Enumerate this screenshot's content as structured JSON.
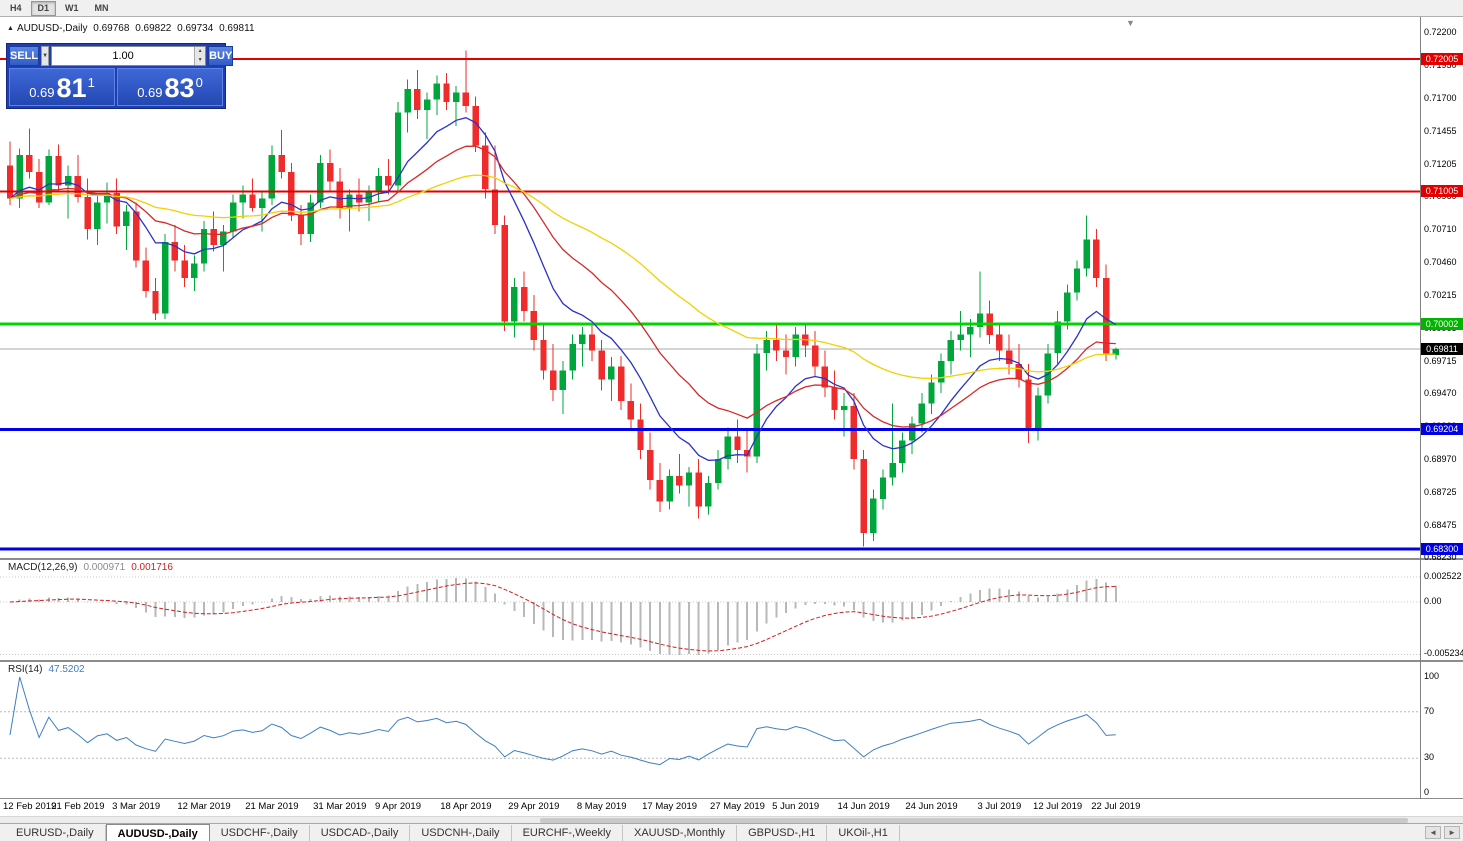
{
  "toolbar": {
    "timeframes": [
      "H4",
      "D1",
      "W1",
      "MN"
    ],
    "active": "D1"
  },
  "symbol_label": {
    "arrow": "▲",
    "name": "AUDUSD-,Daily",
    "open": "0.69768",
    "high": "0.69822",
    "low": "0.69734",
    "close": "0.69811"
  },
  "trade_panel": {
    "sell_label": "SELL",
    "buy_label": "BUY",
    "volume": "1.00",
    "sell_price": {
      "prefix": "0.69",
      "main": "81",
      "sup": "1"
    },
    "buy_price": {
      "prefix": "0.69",
      "main": "83",
      "sup": "0"
    }
  },
  "price_axis": {
    "ticks": [
      "0.72200",
      "0.71950",
      "0.71700",
      "0.71455",
      "0.71205",
      "0.70960",
      "0.70710",
      "0.70460",
      "0.70215",
      "0.69965",
      "0.69715",
      "0.69470",
      "0.69220",
      "0.68970",
      "0.68725",
      "0.68475",
      "0.68230"
    ],
    "badges": [
      {
        "text": "0.72005",
        "value": 0.72005,
        "color": "#e10000"
      },
      {
        "text": "0.71005",
        "value": 0.71005,
        "color": "#e10000"
      },
      {
        "text": "0.70002",
        "value": 0.70002,
        "color": "#00b400"
      },
      {
        "text": "0.69811",
        "value": 0.69811,
        "color": "#000000"
      },
      {
        "text": "0.69204",
        "value": 0.69204,
        "color": "#0000e0"
      },
      {
        "text": "0.68300",
        "value": 0.683,
        "color": "#0000e0"
      }
    ]
  },
  "indicators": {
    "macd": {
      "name": "MACD(12,26,9)",
      "value1": "0.000971",
      "value2": "0.001716",
      "fast": 12,
      "slow": 26,
      "signal": 9,
      "axis": [
        {
          "text": "0.002522",
          "value": 0.002522
        },
        {
          "text": "0.00",
          "value": 0
        },
        {
          "text": "-0.005234",
          "value": -0.005234
        }
      ]
    },
    "rsi": {
      "name": "RSI(14)",
      "value": "47.5202",
      "period": 14,
      "axis": [
        {
          "text": "100",
          "value": 100
        },
        {
          "text": "70",
          "value": 70
        },
        {
          "text": "30",
          "value": 30
        },
        {
          "text": "0",
          "value": 0
        }
      ],
      "levels": [
        70,
        30
      ]
    }
  },
  "chart_data": {
    "type": "candlestick",
    "symbol": "AUDUSD-",
    "timeframe": "Daily",
    "current_bid": 0.69811,
    "current_ask": 0.6983,
    "price_range": [
      0.6823,
      0.722
    ],
    "colors": {
      "bull": "#00a53c",
      "bear": "#ef2b2b",
      "ma_fast": "#2b32c8",
      "ma_mid": "#d42a2a",
      "ma_slow": "#f2d100",
      "macd_hist": "#b8b8b8",
      "macd_signal": "#cc2222",
      "rsi": "#3e7fc1",
      "bid_line": "#a8a8a8"
    },
    "moving_averages": [
      {
        "period": 10,
        "color_key": "ma_fast"
      },
      {
        "period": 21,
        "color_key": "ma_mid"
      },
      {
        "period": 50,
        "color_key": "ma_slow"
      }
    ],
    "hlines": [
      {
        "price": 0.72005,
        "color": "#e10000",
        "width": 2
      },
      {
        "price": 0.71005,
        "color": "#e10000",
        "width": 2
      },
      {
        "price": 0.70002,
        "color": "#00d500",
        "width": 3
      },
      {
        "price": 0.69204,
        "color": "#0000ea",
        "width": 3
      },
      {
        "price": 0.683,
        "color": "#0000ea",
        "width": 3
      }
    ],
    "x_labels": [
      {
        "i": 0,
        "text": "12 Feb 2019"
      },
      {
        "i": 7,
        "text": "21 Feb 2019"
      },
      {
        "i": 13,
        "text": "3 Mar 2019"
      },
      {
        "i": 20,
        "text": "12 Mar 2019"
      },
      {
        "i": 27,
        "text": "21 Mar 2019"
      },
      {
        "i": 34,
        "text": "31 Mar 2019"
      },
      {
        "i": 40,
        "text": "9 Apr 2019"
      },
      {
        "i": 47,
        "text": "18 Apr 2019"
      },
      {
        "i": 54,
        "text": "29 Apr 2019"
      },
      {
        "i": 61,
        "text": "8 May 2019"
      },
      {
        "i": 68,
        "text": "17 May 2019"
      },
      {
        "i": 75,
        "text": "27 May 2019"
      },
      {
        "i": 81,
        "text": "5 Jun 2019"
      },
      {
        "i": 88,
        "text": "14 Jun 2019"
      },
      {
        "i": 95,
        "text": "24 Jun 2019"
      },
      {
        "i": 102,
        "text": "3 Jul 2019"
      },
      {
        "i": 108,
        "text": "12 Jul 2019"
      },
      {
        "i": 114,
        "text": "22 Jul 2019"
      }
    ],
    "candles": [
      [
        0.712,
        0.7138,
        0.709,
        0.7095
      ],
      [
        0.7095,
        0.7133,
        0.7088,
        0.7128
      ],
      [
        0.7128,
        0.7148,
        0.711,
        0.7115
      ],
      [
        0.7115,
        0.7125,
        0.7088,
        0.7092
      ],
      [
        0.7092,
        0.7132,
        0.709,
        0.7127
      ],
      [
        0.7127,
        0.7136,
        0.71,
        0.7105
      ],
      [
        0.7105,
        0.712,
        0.708,
        0.7112
      ],
      [
        0.7112,
        0.7128,
        0.7092,
        0.7096
      ],
      [
        0.7096,
        0.711,
        0.7064,
        0.7072
      ],
      [
        0.7072,
        0.7098,
        0.706,
        0.7092
      ],
      [
        0.7092,
        0.7107,
        0.7076,
        0.7099
      ],
      [
        0.7099,
        0.711,
        0.7068,
        0.7074
      ],
      [
        0.7074,
        0.709,
        0.7056,
        0.7085
      ],
      [
        0.7085,
        0.7092,
        0.7043,
        0.7048
      ],
      [
        0.7048,
        0.7058,
        0.702,
        0.7025
      ],
      [
        0.7025,
        0.7035,
        0.7003,
        0.7008
      ],
      [
        0.7008,
        0.7068,
        0.7004,
        0.7062
      ],
      [
        0.7062,
        0.7075,
        0.704,
        0.7048
      ],
      [
        0.7048,
        0.706,
        0.7028,
        0.7035
      ],
      [
        0.7035,
        0.7052,
        0.7025,
        0.7046
      ],
      [
        0.7046,
        0.7078,
        0.704,
        0.7072
      ],
      [
        0.7072,
        0.7085,
        0.7055,
        0.706
      ],
      [
        0.706,
        0.7075,
        0.704,
        0.707
      ],
      [
        0.707,
        0.7098,
        0.7065,
        0.7092
      ],
      [
        0.7092,
        0.7105,
        0.708,
        0.7098
      ],
      [
        0.7098,
        0.711,
        0.7085,
        0.7088
      ],
      [
        0.7088,
        0.71,
        0.707,
        0.7095
      ],
      [
        0.7095,
        0.7135,
        0.709,
        0.7128
      ],
      [
        0.7128,
        0.7147,
        0.711,
        0.7115
      ],
      [
        0.7115,
        0.7122,
        0.7078,
        0.7082
      ],
      [
        0.7082,
        0.709,
        0.706,
        0.7068
      ],
      [
        0.7068,
        0.7098,
        0.7062,
        0.7092
      ],
      [
        0.7092,
        0.7128,
        0.7088,
        0.7122
      ],
      [
        0.7122,
        0.7132,
        0.71,
        0.7108
      ],
      [
        0.7108,
        0.7118,
        0.708,
        0.7088
      ],
      [
        0.7088,
        0.7102,
        0.707,
        0.7098
      ],
      [
        0.7098,
        0.711,
        0.7085,
        0.7092
      ],
      [
        0.7092,
        0.7105,
        0.7078,
        0.71
      ],
      [
        0.71,
        0.7118,
        0.7092,
        0.7112
      ],
      [
        0.7112,
        0.7125,
        0.7098,
        0.7105
      ],
      [
        0.7105,
        0.7168,
        0.71,
        0.716
      ],
      [
        0.716,
        0.7185,
        0.7145,
        0.7178
      ],
      [
        0.7178,
        0.7192,
        0.7155,
        0.7162
      ],
      [
        0.7162,
        0.7175,
        0.714,
        0.717
      ],
      [
        0.717,
        0.7188,
        0.7158,
        0.7182
      ],
      [
        0.7182,
        0.719,
        0.7162,
        0.7168
      ],
      [
        0.7168,
        0.718,
        0.715,
        0.7175
      ],
      [
        0.7175,
        0.7207,
        0.716,
        0.7165
      ],
      [
        0.7165,
        0.7172,
        0.713,
        0.7135
      ],
      [
        0.7135,
        0.7145,
        0.7095,
        0.7102
      ],
      [
        0.7102,
        0.7135,
        0.7068,
        0.7075
      ],
      [
        0.7075,
        0.7082,
        0.6995,
        0.7002
      ],
      [
        0.7002,
        0.7035,
        0.699,
        0.7028
      ],
      [
        0.7028,
        0.704,
        0.7002,
        0.701
      ],
      [
        0.701,
        0.7022,
        0.698,
        0.6988
      ],
      [
        0.6988,
        0.7,
        0.6958,
        0.6965
      ],
      [
        0.6965,
        0.6985,
        0.6942,
        0.695
      ],
      [
        0.695,
        0.6972,
        0.6932,
        0.6965
      ],
      [
        0.6965,
        0.6992,
        0.6958,
        0.6985
      ],
      [
        0.6985,
        0.6998,
        0.6968,
        0.6992
      ],
      [
        0.6992,
        0.7,
        0.6972,
        0.698
      ],
      [
        0.698,
        0.6988,
        0.695,
        0.6958
      ],
      [
        0.6958,
        0.6975,
        0.6942,
        0.6968
      ],
      [
        0.6968,
        0.6976,
        0.6935,
        0.6942
      ],
      [
        0.6942,
        0.6955,
        0.692,
        0.6928
      ],
      [
        0.6928,
        0.694,
        0.6898,
        0.6905
      ],
      [
        0.6905,
        0.6918,
        0.6875,
        0.6882
      ],
      [
        0.6882,
        0.6895,
        0.6858,
        0.6866
      ],
      [
        0.6866,
        0.689,
        0.686,
        0.6885
      ],
      [
        0.6885,
        0.6902,
        0.6872,
        0.6878
      ],
      [
        0.6878,
        0.6892,
        0.6862,
        0.6888
      ],
      [
        0.6888,
        0.6898,
        0.6853,
        0.6862
      ],
      [
        0.6862,
        0.6885,
        0.6856,
        0.688
      ],
      [
        0.688,
        0.6905,
        0.6875,
        0.6898
      ],
      [
        0.6898,
        0.6922,
        0.689,
        0.6915
      ],
      [
        0.6915,
        0.6928,
        0.6895,
        0.6905
      ],
      [
        0.6905,
        0.692,
        0.6888,
        0.69
      ],
      [
        0.69,
        0.6985,
        0.6895,
        0.6978
      ],
      [
        0.6978,
        0.6995,
        0.6965,
        0.6988
      ],
      [
        0.6988,
        0.7,
        0.6972,
        0.698
      ],
      [
        0.698,
        0.6992,
        0.6962,
        0.6975
      ],
      [
        0.6975,
        0.6998,
        0.6968,
        0.6992
      ],
      [
        0.6992,
        0.7001,
        0.6975,
        0.6984
      ],
      [
        0.6984,
        0.6995,
        0.696,
        0.6968
      ],
      [
        0.6968,
        0.698,
        0.6945,
        0.6952
      ],
      [
        0.6952,
        0.6965,
        0.6928,
        0.6935
      ],
      [
        0.6935,
        0.6948,
        0.6915,
        0.6938
      ],
      [
        0.6938,
        0.6948,
        0.689,
        0.6898
      ],
      [
        0.6898,
        0.6905,
        0.6832,
        0.6842
      ],
      [
        0.6842,
        0.6875,
        0.6836,
        0.6868
      ],
      [
        0.6868,
        0.689,
        0.686,
        0.6884
      ],
      [
        0.6884,
        0.694,
        0.6878,
        0.6895
      ],
      [
        0.6895,
        0.6918,
        0.6888,
        0.6912
      ],
      [
        0.6912,
        0.693,
        0.6902,
        0.6925
      ],
      [
        0.6925,
        0.6948,
        0.6918,
        0.694
      ],
      [
        0.694,
        0.6962,
        0.6932,
        0.6956
      ],
      [
        0.6956,
        0.6978,
        0.6948,
        0.6972
      ],
      [
        0.6972,
        0.6995,
        0.6962,
        0.6988
      ],
      [
        0.6988,
        0.701,
        0.698,
        0.6992
      ],
      [
        0.6992,
        0.7004,
        0.6975,
        0.6998
      ],
      [
        0.6998,
        0.704,
        0.699,
        0.7008
      ],
      [
        0.7008,
        0.7018,
        0.6985,
        0.6992
      ],
      [
        0.6992,
        0.7,
        0.6972,
        0.698
      ],
      [
        0.698,
        0.6992,
        0.6962,
        0.697
      ],
      [
        0.697,
        0.6985,
        0.6952,
        0.6958
      ],
      [
        0.6958,
        0.697,
        0.691,
        0.692
      ],
      [
        0.692,
        0.6952,
        0.6912,
        0.6946
      ],
      [
        0.6946,
        0.6985,
        0.694,
        0.6978
      ],
      [
        0.6978,
        0.701,
        0.697,
        0.7002
      ],
      [
        0.7002,
        0.703,
        0.6996,
        0.7024
      ],
      [
        0.7024,
        0.7048,
        0.7018,
        0.7042
      ],
      [
        0.7042,
        0.7082,
        0.7036,
        0.7064
      ],
      [
        0.7064,
        0.7072,
        0.7028,
        0.7035
      ],
      [
        0.7035,
        0.7045,
        0.6972,
        0.6978
      ],
      [
        0.69768,
        0.69822,
        0.69734,
        0.69811
      ]
    ]
  },
  "tabs": {
    "items": [
      "EURUSD-,Daily",
      "AUDUSD-,Daily",
      "USDCHF-,Daily",
      "USDCAD-,Daily",
      "USDCNH-,Daily",
      "EURCHF-,Weekly",
      "XAUUSD-,Monthly",
      "GBPUSD-,H1",
      "UKOil-,H1"
    ],
    "active_index": 1,
    "scroll_left": "◄",
    "scroll_right": "►"
  }
}
